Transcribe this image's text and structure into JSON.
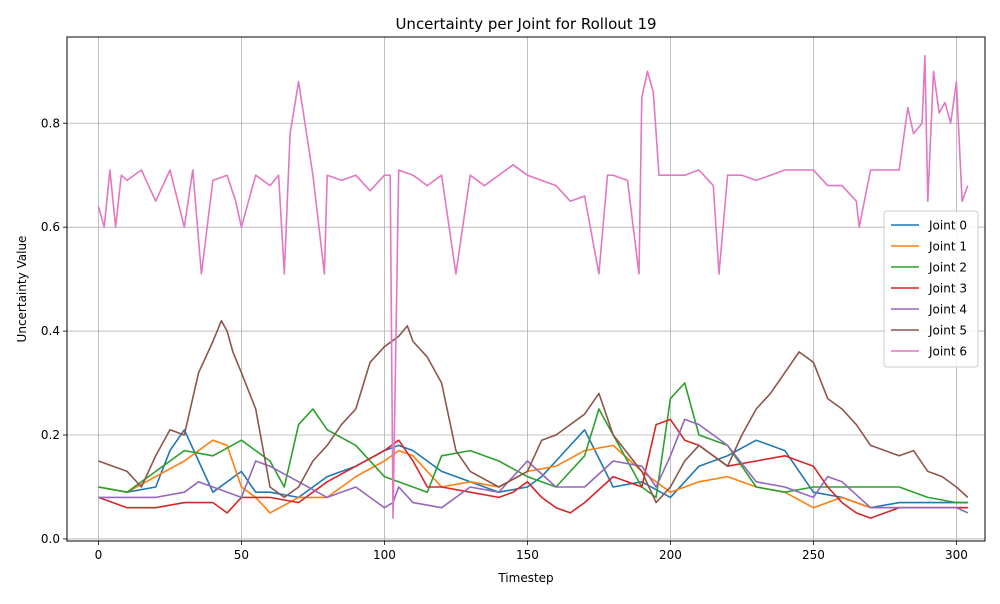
{
  "chart_data": {
    "type": "line",
    "title": "Uncertainty per Joint for Rollout 19",
    "xlabel": "Timestep",
    "ylabel": "Uncertainty Value",
    "xlim": [
      -11,
      310
    ],
    "ylim": [
      -0.004,
      0.966
    ],
    "xticks": [
      0,
      50,
      100,
      150,
      200,
      250,
      300
    ],
    "yticks": [
      0.0,
      0.2,
      0.4,
      0.6,
      0.8
    ],
    "xtick_labels": [
      "0",
      "50",
      "100",
      "150",
      "200",
      "250",
      "300"
    ],
    "ytick_labels": [
      "0.0",
      "0.2",
      "0.4",
      "0.6",
      "0.8"
    ],
    "grid": true,
    "legend_position": "center-right",
    "series": [
      {
        "name": "Joint 0",
        "color": "#1f77b4",
        "x": [
          0,
          10,
          20,
          25,
          30,
          35,
          40,
          50,
          55,
          60,
          70,
          80,
          90,
          100,
          105,
          110,
          120,
          130,
          140,
          150,
          155,
          160,
          170,
          180,
          190,
          200,
          210,
          220,
          230,
          240,
          250,
          260,
          270,
          280,
          290,
          300,
          304
        ],
        "y": [
          0.1,
          0.09,
          0.1,
          0.17,
          0.21,
          0.15,
          0.09,
          0.13,
          0.09,
          0.09,
          0.08,
          0.12,
          0.14,
          0.17,
          0.18,
          0.17,
          0.13,
          0.11,
          0.09,
          0.1,
          0.12,
          0.15,
          0.21,
          0.1,
          0.11,
          0.08,
          0.14,
          0.16,
          0.19,
          0.17,
          0.09,
          0.08,
          0.06,
          0.07,
          0.07,
          0.07,
          0.07
        ]
      },
      {
        "name": "Joint 1",
        "color": "#ff7f0e",
        "x": [
          0,
          10,
          20,
          30,
          40,
          45,
          50,
          55,
          60,
          70,
          80,
          90,
          100,
          105,
          110,
          120,
          130,
          140,
          150,
          160,
          170,
          180,
          190,
          200,
          210,
          220,
          230,
          240,
          250,
          260,
          270,
          280,
          290,
          300,
          304
        ],
        "y": [
          0.1,
          0.09,
          0.12,
          0.15,
          0.19,
          0.18,
          0.1,
          0.08,
          0.05,
          0.08,
          0.08,
          0.12,
          0.15,
          0.17,
          0.16,
          0.1,
          0.11,
          0.1,
          0.13,
          0.14,
          0.17,
          0.18,
          0.13,
          0.09,
          0.11,
          0.12,
          0.1,
          0.09,
          0.06,
          0.08,
          0.06,
          0.06,
          0.06,
          0.06,
          0.06
        ]
      },
      {
        "name": "Joint 2",
        "color": "#2ca02c",
        "x": [
          0,
          10,
          20,
          30,
          40,
          50,
          60,
          65,
          70,
          75,
          80,
          90,
          100,
          110,
          115,
          120,
          130,
          140,
          150,
          160,
          170,
          175,
          180,
          190,
          195,
          200,
          205,
          210,
          220,
          230,
          240,
          250,
          260,
          270,
          280,
          290,
          300,
          304
        ],
        "y": [
          0.1,
          0.09,
          0.13,
          0.17,
          0.16,
          0.19,
          0.15,
          0.1,
          0.22,
          0.25,
          0.21,
          0.18,
          0.12,
          0.1,
          0.09,
          0.16,
          0.17,
          0.15,
          0.12,
          0.1,
          0.16,
          0.25,
          0.2,
          0.1,
          0.08,
          0.27,
          0.3,
          0.2,
          0.18,
          0.1,
          0.09,
          0.1,
          0.1,
          0.1,
          0.1,
          0.08,
          0.07,
          0.07
        ]
      },
      {
        "name": "Joint 3",
        "color": "#d62728",
        "x": [
          0,
          10,
          20,
          30,
          40,
          45,
          50,
          60,
          70,
          80,
          90,
          100,
          105,
          110,
          115,
          120,
          130,
          140,
          145,
          150,
          155,
          160,
          165,
          170,
          180,
          190,
          195,
          200,
          205,
          210,
          220,
          230,
          240,
          250,
          255,
          260,
          265,
          270,
          280,
          290,
          300,
          304
        ],
        "y": [
          0.08,
          0.06,
          0.06,
          0.07,
          0.07,
          0.05,
          0.08,
          0.08,
          0.07,
          0.11,
          0.14,
          0.17,
          0.19,
          0.15,
          0.1,
          0.1,
          0.09,
          0.08,
          0.09,
          0.11,
          0.08,
          0.06,
          0.05,
          0.07,
          0.12,
          0.1,
          0.22,
          0.23,
          0.19,
          0.18,
          0.14,
          0.15,
          0.16,
          0.14,
          0.1,
          0.07,
          0.05,
          0.04,
          0.06,
          0.06,
          0.06,
          0.06
        ]
      },
      {
        "name": "Joint 4",
        "color": "#9467bd",
        "x": [
          0,
          10,
          20,
          30,
          35,
          40,
          50,
          55,
          60,
          70,
          80,
          90,
          95,
          100,
          103,
          105,
          110,
          120,
          130,
          140,
          150,
          160,
          170,
          180,
          190,
          195,
          200,
          205,
          210,
          215,
          220,
          230,
          240,
          250,
          255,
          260,
          270,
          280,
          290,
          300,
          304
        ],
        "y": [
          0.08,
          0.08,
          0.08,
          0.09,
          0.11,
          0.1,
          0.08,
          0.15,
          0.14,
          0.11,
          0.08,
          0.1,
          0.08,
          0.06,
          0.07,
          0.1,
          0.07,
          0.06,
          0.1,
          0.09,
          0.15,
          0.1,
          0.1,
          0.15,
          0.14,
          0.1,
          0.16,
          0.23,
          0.22,
          0.2,
          0.18,
          0.11,
          0.1,
          0.08,
          0.12,
          0.11,
          0.06,
          0.06,
          0.06,
          0.06,
          0.05
        ]
      },
      {
        "name": "Joint 5",
        "color": "#8c564b",
        "x": [
          0,
          10,
          15,
          20,
          25,
          30,
          35,
          40,
          43,
          45,
          47,
          50,
          55,
          60,
          65,
          70,
          75,
          80,
          85,
          90,
          95,
          100,
          105,
          108,
          110,
          115,
          120,
          125,
          130,
          140,
          150,
          155,
          160,
          170,
          175,
          180,
          190,
          195,
          200,
          205,
          210,
          220,
          225,
          230,
          235,
          240,
          245,
          250,
          255,
          260,
          265,
          270,
          280,
          285,
          290,
          295,
          300,
          304
        ],
        "y": [
          0.15,
          0.13,
          0.1,
          0.16,
          0.21,
          0.2,
          0.32,
          0.38,
          0.42,
          0.4,
          0.36,
          0.32,
          0.25,
          0.1,
          0.08,
          0.1,
          0.15,
          0.18,
          0.22,
          0.25,
          0.34,
          0.37,
          0.39,
          0.41,
          0.38,
          0.35,
          0.3,
          0.17,
          0.13,
          0.1,
          0.13,
          0.19,
          0.2,
          0.24,
          0.28,
          0.2,
          0.13,
          0.07,
          0.1,
          0.15,
          0.18,
          0.14,
          0.2,
          0.25,
          0.28,
          0.32,
          0.36,
          0.34,
          0.27,
          0.25,
          0.22,
          0.18,
          0.16,
          0.17,
          0.13,
          0.12,
          0.1,
          0.08
        ]
      },
      {
        "name": "Joint 6",
        "color": "#e377c2",
        "x": [
          0,
          2,
          4,
          6,
          8,
          10,
          15,
          20,
          25,
          30,
          33,
          36,
          40,
          45,
          48,
          50,
          55,
          60,
          63,
          65,
          67,
          70,
          75,
          79,
          80,
          85,
          90,
          95,
          100,
          102,
          103,
          105,
          110,
          115,
          120,
          125,
          130,
          135,
          140,
          145,
          150,
          155,
          160,
          165,
          170,
          175,
          178,
          180,
          185,
          189,
          190,
          192,
          194,
          196,
          200,
          205,
          210,
          215,
          217,
          220,
          225,
          230,
          235,
          240,
          245,
          250,
          255,
          260,
          265,
          266,
          270,
          275,
          280,
          283,
          285,
          288,
          289,
          290,
          292,
          294,
          296,
          298,
          300,
          302,
          304
        ],
        "y": [
          0.64,
          0.6,
          0.71,
          0.6,
          0.7,
          0.69,
          0.71,
          0.65,
          0.71,
          0.6,
          0.71,
          0.51,
          0.69,
          0.7,
          0.65,
          0.6,
          0.7,
          0.68,
          0.7,
          0.51,
          0.78,
          0.88,
          0.7,
          0.51,
          0.7,
          0.69,
          0.7,
          0.67,
          0.7,
          0.7,
          0.04,
          0.71,
          0.7,
          0.68,
          0.7,
          0.51,
          0.7,
          0.68,
          0.7,
          0.72,
          0.7,
          0.69,
          0.68,
          0.65,
          0.66,
          0.51,
          0.7,
          0.7,
          0.69,
          0.51,
          0.85,
          0.9,
          0.86,
          0.7,
          0.7,
          0.7,
          0.71,
          0.68,
          0.51,
          0.7,
          0.7,
          0.69,
          0.7,
          0.71,
          0.71,
          0.71,
          0.68,
          0.68,
          0.65,
          0.6,
          0.71,
          0.71,
          0.71,
          0.83,
          0.78,
          0.8,
          0.93,
          0.65,
          0.9,
          0.82,
          0.84,
          0.8,
          0.88,
          0.65,
          0.68
        ]
      }
    ]
  }
}
